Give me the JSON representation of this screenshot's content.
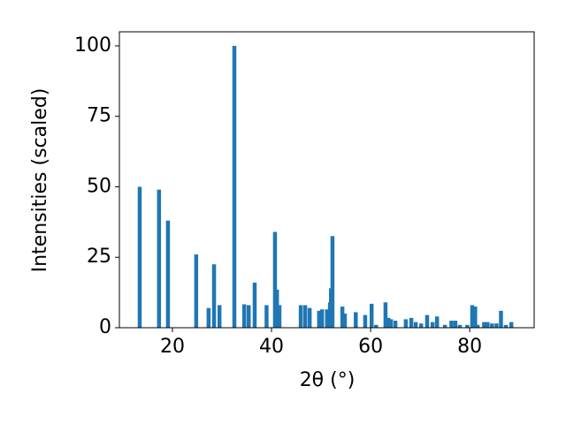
{
  "chart_data": {
    "type": "bar",
    "x_label": "2θ (°)",
    "y_label": "Intensities (scaled)",
    "color": "#1f77b4",
    "bar_width": 0.8,
    "x": [
      13.4,
      17.3,
      19.1,
      24.8,
      27.3,
      28.4,
      29.5,
      32.5,
      34.5,
      35.4,
      36.6,
      39.0,
      40.7,
      41.1,
      41.6,
      45.9,
      46.8,
      47.7,
      49.6,
      50.2,
      51.2,
      51.8,
      52.0,
      52.3,
      54.3,
      54.8,
      57.0,
      58.9,
      60.2,
      61.1,
      63.0,
      63.6,
      64.1,
      65.0,
      67.1,
      68.2,
      69.1,
      70.2,
      71.4,
      72.5,
      73.4,
      75.0,
      76.3,
      77.1,
      78.0,
      79.5,
      80.5,
      81.1,
      81.6,
      82.9,
      83.6,
      84.5,
      85.4,
      86.3,
      87.3,
      88.4
    ],
    "values": [
      50,
      49,
      38,
      26,
      7,
      22.5,
      8,
      100,
      8.3,
      8,
      16,
      8,
      34,
      13.5,
      8,
      8,
      8,
      7,
      6,
      6.5,
      6.5,
      9,
      14,
      32.5,
      7.5,
      5,
      5.5,
      4.5,
      8.5,
      1,
      9,
      3.5,
      3,
      2.5,
      3,
      3.5,
      2,
      1.5,
      4.5,
      2,
      4,
      1,
      2.5,
      2.5,
      1,
      1,
      8,
      7.5,
      1,
      2,
      2,
      1.5,
      1.5,
      6,
      1,
      2
    ],
    "xlim": [
      9.3,
      93.0
    ],
    "ylim": [
      0,
      105
    ],
    "xticks": [
      20,
      40,
      60,
      80
    ],
    "yticks": [
      0,
      25,
      50,
      75,
      100
    ]
  }
}
